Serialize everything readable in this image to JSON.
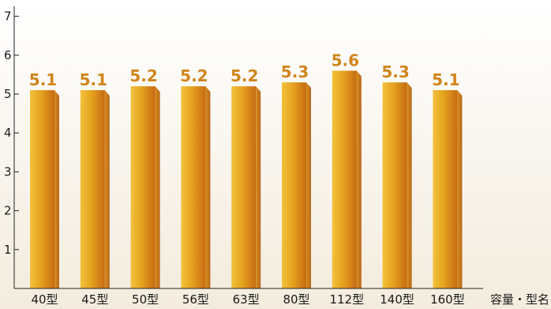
{
  "chart_data": {
    "type": "bar",
    "categories": [
      "40型",
      "45型",
      "50型",
      "56型",
      "63型",
      "80型",
      "112型",
      "140型",
      "160型"
    ],
    "values": [
      5.1,
      5.1,
      5.2,
      5.2,
      5.2,
      5.3,
      5.6,
      5.3,
      5.1
    ],
    "data_labels": [
      "5.1",
      "5.1",
      "5.2",
      "5.2",
      "5.2",
      "5.3",
      "5.6",
      "5.3",
      "5.1"
    ],
    "title": "",
    "xlabel": "容量・型名",
    "ylabel": "",
    "ylim": [
      0,
      7
    ],
    "yticks": [
      {
        "value": 1,
        "label": "1"
      },
      {
        "value": 2,
        "label": "2"
      },
      {
        "value": 3,
        "label": "3"
      },
      {
        "value": 4,
        "label": "4"
      },
      {
        "value": 5,
        "label": "5"
      },
      {
        "value": 6,
        "label": "6"
      },
      {
        "value": 7,
        "label": "7"
      }
    ],
    "grid": false,
    "legend": "none",
    "colors": {
      "background_top": "#ffffff",
      "background_bottom": "#f3ecde",
      "bar_highlight": "#f2c23c",
      "bar_mid": "#e6a21e",
      "bar_shadow": "#c66b13",
      "bar_side": "#d9901f",
      "bar_side_dark": "#b7651a",
      "value_label": "#d1851c",
      "axis": "#222222"
    }
  }
}
